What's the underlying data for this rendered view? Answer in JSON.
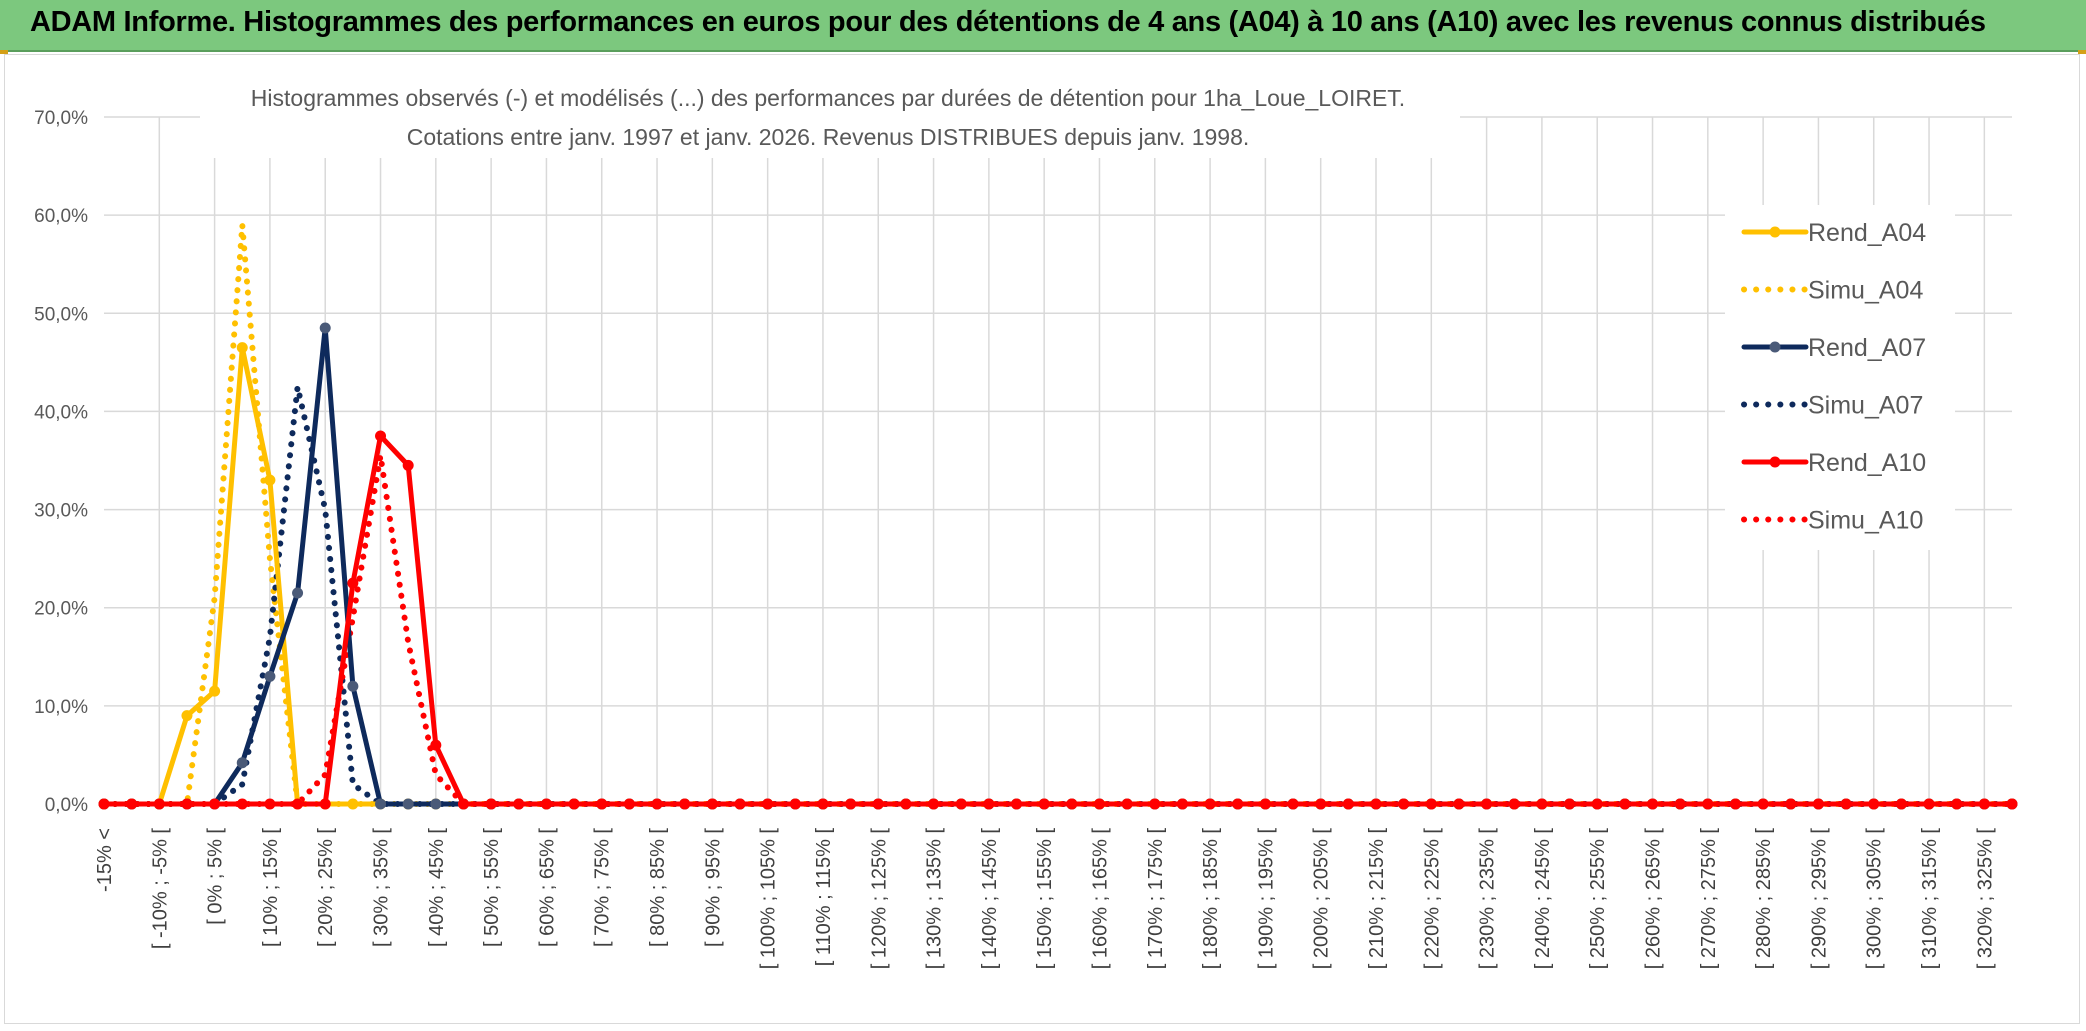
{
  "banner": {
    "title": "ADAM Informe. Histogrammes des performances en euros pour des détentions de 4 ans (A04) à 10 ans (A10) avec les revenus connus distribués"
  },
  "colors": {
    "banner_bg": "#7cc87e",
    "A04": "#ffc000",
    "A07": "#0e2a5c",
    "A10": "#ff0000",
    "grid": "#d9d9d9"
  },
  "chart_data": {
    "type": "line",
    "title_line1": "Histogrammes observés (-) et modélisés (...) des performances par durées de détention pour 1ha_Loue_LOIRET.",
    "title_line2": "Cotations entre janv. 1997 et janv. 2026. Revenus DISTRIBUES depuis janv. 1998.",
    "ylim": [
      0,
      70
    ],
    "yticks": [
      "0,0%",
      "10,0%",
      "20,0%",
      "30,0%",
      "40,0%",
      "50,0%",
      "60,0%",
      "70,0%"
    ],
    "grid": true,
    "legend_position": "right",
    "x_tick_labels": [
      "-15% <",
      "[ -10% ; -5% [",
      "[ 0% ; 5% [",
      "[ 10% ; 15% [",
      "[ 20% ; 25% [",
      "[ 30% ; 35% [",
      "[ 40% ; 45% [",
      "[ 50% ; 55% [",
      "[ 60% ; 65% [",
      "[ 70% ; 75% [",
      "[ 80% ; 85% [",
      "[ 90% ; 95% [",
      "[ 100% ; 105% [",
      "[ 110% ; 115% [",
      "[ 120% ; 125% [",
      "[ 130% ; 135% [",
      "[ 140% ; 145% [",
      "[ 150% ; 155% [",
      "[ 160% ; 165% [",
      "[ 170% ; 175% [",
      "[ 180% ; 185% [",
      "[ 190% ; 195% [",
      "[ 200% ; 205% [",
      "[ 210% ; 215% [",
      "[ 220% ; 225% [",
      "[ 230% ; 235% [",
      "[ 240% ; 245% [",
      "[ 250% ; 255% [",
      "[ 260% ; 265% [",
      "[ 270% ; 275% [",
      "[ 280% ; 285% [",
      "[ 290% ; 295% [",
      "[ 300% ; 305% [",
      "[ 310% ; 315% [",
      "[ 320% ; 325% ["
    ],
    "x_count": 70,
    "series": [
      {
        "name": "Rend_A04",
        "style": "solid",
        "color": "#ffc000",
        "markers": true,
        "values": [
          0,
          0,
          0,
          9,
          11.5,
          46.5,
          33,
          0,
          0,
          0,
          0,
          0,
          0,
          0,
          0,
          0,
          0,
          0,
          0,
          0,
          0,
          0,
          0,
          0,
          0,
          0,
          0,
          0,
          0,
          0,
          0,
          0,
          0,
          0,
          0,
          0,
          0,
          0,
          0,
          0,
          0,
          0,
          0,
          0,
          0,
          0,
          0,
          0,
          0,
          0,
          0,
          0,
          0,
          0,
          0,
          0,
          0,
          0,
          0,
          0,
          0,
          0,
          0,
          0,
          0,
          0,
          0,
          0,
          0,
          0
        ]
      },
      {
        "name": "Simu_A04",
        "style": "dotted",
        "color": "#ffc000",
        "markers": false,
        "values": [
          0,
          0,
          0,
          0,
          21,
          59,
          25,
          0,
          0,
          0,
          0,
          0,
          0,
          0,
          0,
          0,
          0,
          0,
          0,
          0,
          0,
          0,
          0,
          0,
          0,
          0,
          0,
          0,
          0,
          0,
          0,
          0,
          0,
          0,
          0,
          0,
          0,
          0,
          0,
          0,
          0,
          0,
          0,
          0,
          0,
          0,
          0,
          0,
          0,
          0,
          0,
          0,
          0,
          0,
          0,
          0,
          0,
          0,
          0,
          0,
          0,
          0,
          0,
          0,
          0,
          0,
          0,
          0,
          0,
          0
        ]
      },
      {
        "name": "Rend_A07",
        "style": "solid",
        "color": "#0e2a5c",
        "markers": true,
        "values": [
          0,
          0,
          0,
          0,
          0,
          4.2,
          13,
          21.5,
          48.5,
          12,
          0,
          0,
          0,
          0,
          0,
          0,
          0,
          0,
          0,
          0,
          0,
          0,
          0,
          0,
          0,
          0,
          0,
          0,
          0,
          0,
          0,
          0,
          0,
          0,
          0,
          0,
          0,
          0,
          0,
          0,
          0,
          0,
          0,
          0,
          0,
          0,
          0,
          0,
          0,
          0,
          0,
          0,
          0,
          0,
          0,
          0,
          0,
          0,
          0,
          0,
          0,
          0,
          0,
          0,
          0,
          0,
          0,
          0,
          0,
          0
        ]
      },
      {
        "name": "Simu_A07",
        "style": "dotted",
        "color": "#0e2a5c",
        "markers": false,
        "values": [
          0,
          0,
          0,
          0,
          0,
          2,
          17,
          42.5,
          30,
          2,
          0,
          0,
          0,
          0,
          0,
          0,
          0,
          0,
          0,
          0,
          0,
          0,
          0,
          0,
          0,
          0,
          0,
          0,
          0,
          0,
          0,
          0,
          0,
          0,
          0,
          0,
          0,
          0,
          0,
          0,
          0,
          0,
          0,
          0,
          0,
          0,
          0,
          0,
          0,
          0,
          0,
          0,
          0,
          0,
          0,
          0,
          0,
          0,
          0,
          0,
          0,
          0,
          0,
          0,
          0,
          0,
          0,
          0,
          0,
          0
        ]
      },
      {
        "name": "Rend_A10",
        "style": "solid",
        "color": "#ff0000",
        "markers": true,
        "values": [
          0,
          0,
          0,
          0,
          0,
          0,
          0,
          0,
          0,
          22.5,
          37.5,
          34.5,
          6,
          0,
          0,
          0,
          0,
          0,
          0,
          0,
          0,
          0,
          0,
          0,
          0,
          0,
          0,
          0,
          0,
          0,
          0,
          0,
          0,
          0,
          0,
          0,
          0,
          0,
          0,
          0,
          0,
          0,
          0,
          0,
          0,
          0,
          0,
          0,
          0,
          0,
          0,
          0,
          0,
          0,
          0,
          0,
          0,
          0,
          0,
          0,
          0,
          0,
          0,
          0,
          0,
          0,
          0,
          0,
          0,
          0
        ]
      },
      {
        "name": "Simu_A10",
        "style": "dotted",
        "color": "#ff0000",
        "markers": false,
        "values": [
          0,
          0,
          0,
          0,
          0,
          0,
          0,
          0,
          3,
          19,
          35.5,
          16.5,
          3,
          0,
          0,
          0,
          0,
          0,
          0,
          0,
          0,
          0,
          0,
          0,
          0,
          0,
          0,
          0,
          0,
          0,
          0,
          0,
          0,
          0,
          0,
          0,
          0,
          0,
          0,
          0,
          0,
          0,
          0,
          0,
          0,
          0,
          0,
          0,
          0,
          0,
          0,
          0,
          0,
          0,
          0,
          0,
          0,
          0,
          0,
          0,
          0,
          0,
          0,
          0,
          0,
          0,
          0,
          0,
          0,
          0
        ]
      }
    ]
  }
}
